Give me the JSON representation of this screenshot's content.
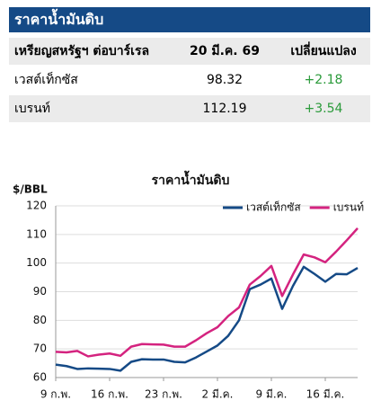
{
  "table": {
    "title": "ราคาน้ำมันดิบ",
    "header": [
      "เหรียญสหรัฐฯ ต่อบาร์เรล",
      "20 มี.ค. 69",
      "เปลี่ยนแปลง"
    ],
    "rows": [
      [
        "เวสต์เท็กซัส",
        98.32,
        "+2.18"
      ],
      [
        "เบรนท์",
        112.19,
        "+3.54"
      ]
    ]
  },
  "chart_data": {
    "type": "line",
    "title": "ราคาน้ำมันดิบ",
    "ylabel": "$/BBL",
    "categories": [
      "9 ก.พ.",
      null,
      null,
      null,
      null,
      "16 ก.พ.",
      null,
      null,
      null,
      null,
      "23 ก.พ.",
      null,
      null,
      null,
      null,
      "2 มี.ค.",
      null,
      null,
      null,
      null,
      "9 มี.ค.",
      null,
      null,
      null,
      null,
      "16 มี.ค.",
      null,
      null,
      null
    ],
    "series": [
      {
        "name": "เวสต์เท็กซัส",
        "color": "#154a86",
        "values": [
          64.5,
          64,
          63,
          63.2,
          63.1,
          63,
          62.4,
          65.5,
          66.4,
          66.3,
          66.3,
          65.5,
          65.3,
          67,
          69.1,
          71.2,
          74.6,
          80,
          90.9,
          92.5,
          94.6,
          84,
          92,
          98.7,
          96.2,
          93.5,
          96.2,
          96.1,
          98.32
        ]
      },
      {
        "name": "เบรนท์",
        "color": "#d4237f",
        "values": [
          69,
          68.8,
          69.3,
          67.4,
          68,
          68.4,
          67.6,
          70.8,
          71.7,
          71.6,
          71.5,
          70.8,
          70.8,
          73,
          75.5,
          77.6,
          81.5,
          84.5,
          92.5,
          95.5,
          99,
          88.5,
          96,
          103,
          102,
          100.3,
          104,
          108,
          112.19
        ]
      }
    ],
    "ylim": [
      60,
      120
    ],
    "yticks": [
      60,
      70,
      80,
      90,
      100,
      110,
      120
    ],
    "grid": true,
    "legend": "upper right"
  }
}
